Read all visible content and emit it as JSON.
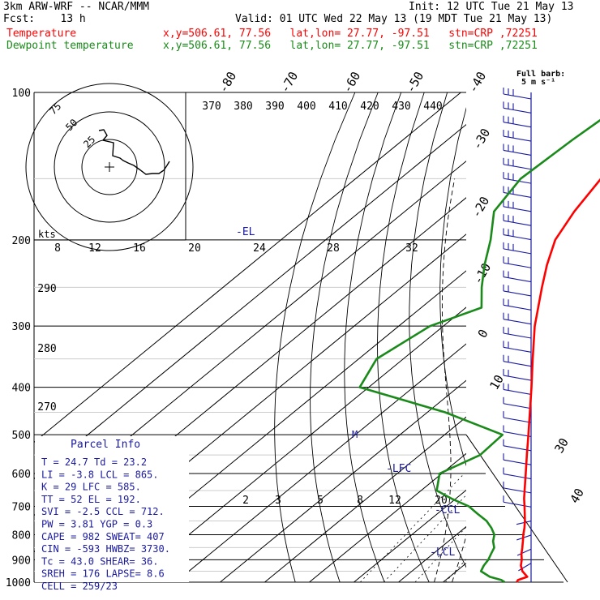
{
  "header": {
    "model": "3km ARW-WRF -- NCAR/MMM",
    "init": "Init: 12 UTC Tue 21 May 13",
    "fcst": "Fcst:    13 h",
    "valid": "Valid: 01 UTC Wed 22 May 13 (19 MDT Tue 21 May 13)",
    "temp_label": "Temperature",
    "dew_label": "Dewpoint temperature",
    "temp_info": "x,y=506.61, 77.56   lat,lon= 27.77, -97.51   stn=CRP ,72251",
    "dew_info": "x,y=506.61, 77.56   lat,lon= 27.77, -97.51   stn=CRP ,72251"
  },
  "colors": {
    "temperature": "#ff0000",
    "dewpoint": "#1a8a1a",
    "label_blue": "#1a1aa0",
    "text": "#000000"
  },
  "barb_key": {
    "line1": "Full barb:",
    "line2": "5 m s⁻¹"
  },
  "hodograph": {
    "kts_label": "kts",
    "ring_labels": [
      "75",
      "50",
      "25"
    ],
    "speed_ticks": [
      "8",
      "12",
      "16",
      "20",
      "24",
      "28",
      "32"
    ]
  },
  "theta_e_labels": [
    "370",
    "380",
    "390",
    "400",
    "410",
    "420",
    "430",
    "440"
  ],
  "theta_labels": [
    "290",
    "280",
    "270"
  ],
  "mixing_ratio_labels": [
    "2",
    "3",
    "5",
    "8",
    "12",
    "20"
  ],
  "top_temp_labels": [
    "-80",
    "-70",
    "-60",
    "-50",
    "-40"
  ],
  "right_temp_labels": [
    "-30",
    "-20",
    "-10",
    "0",
    "10",
    "30",
    "40"
  ],
  "level_markers": {
    "el": "-EL",
    "lfc": "-LFC",
    "ccl": "-CCL",
    "lcl": "-LCL",
    "m": "M"
  },
  "parcel_info": {
    "title": "Parcel Info",
    "rows": [
      "T  =   24.7  Td =  23.2",
      "LI =   -3.8  LCL =  865.",
      "K  =     29  LFC =  585.",
      "TT =     52  EL  =  192.",
      "SVI =  -2.5  CCL =  712.",
      "PW =   3.81  YGP =   0.3",
      "CAPE =  982  SWEAT=  407",
      "CIN =  -593  HWBZ= 3730.",
      "Tc =   43.0  SHEAR=  36.",
      "SREH =  176  LAPSE=  8.6",
      "CELL = 259/23"
    ]
  },
  "chart_data": {
    "type": "line",
    "title": "",
    "x_axis": "Temperature (C), skewed",
    "y_axis": "Pressure (hPa), log scale",
    "pressure_levels": [
      "100",
      "200",
      "300",
      "400",
      "500",
      "600",
      "700",
      "800",
      "900",
      "1000"
    ],
    "ylim": [
      1000,
      100
    ],
    "series": [
      {
        "name": "Temperature",
        "color": "#ff0000",
        "pressure": [
          1000,
          990,
          975,
          950,
          925,
          900,
          875,
          850,
          825,
          800,
          775,
          750,
          725,
          700,
          675,
          650,
          600,
          550,
          500,
          450,
          400,
          350,
          300,
          250,
          225,
          200,
          175,
          150,
          125,
          100
        ],
        "temperature_c": [
          26.5,
          26.2,
          27.4,
          24.8,
          22.9,
          21.5,
          19.8,
          18.3,
          16.7,
          15.0,
          13.4,
          11.6,
          9.6,
          7.5,
          5.3,
          3.2,
          -1.2,
          -6.0,
          -11.2,
          -17.0,
          -23.5,
          -31.0,
          -39.5,
          -48.5,
          -53.5,
          -58.5,
          -62.0,
          -65.0,
          -67.0,
          -69.0
        ]
      },
      {
        "name": "Dewpoint temperature",
        "color": "#1a8a1a",
        "pressure": [
          1000,
          990,
          975,
          950,
          925,
          900,
          875,
          850,
          825,
          800,
          775,
          750,
          725,
          700,
          675,
          650,
          600,
          550,
          500,
          450,
          400,
          350,
          300,
          275,
          250,
          225,
          200,
          175,
          150,
          125,
          100
        ],
        "temperature_c": [
          23.8,
          22.5,
          19.0,
          15.5,
          14.6,
          14.0,
          13.0,
          12.0,
          10.0,
          8.5,
          6.0,
          3.0,
          -1.0,
          -5.0,
          -11.0,
          -16.5,
          -20.5,
          -16.5,
          -17.0,
          -36.0,
          -62.0,
          -66.0,
          -63.0,
          -56.5,
          -62.0,
          -67.5,
          -73.0,
          -80.0,
          -83.0,
          -82.0,
          -80.0
        ]
      }
    ],
    "grid": true
  }
}
